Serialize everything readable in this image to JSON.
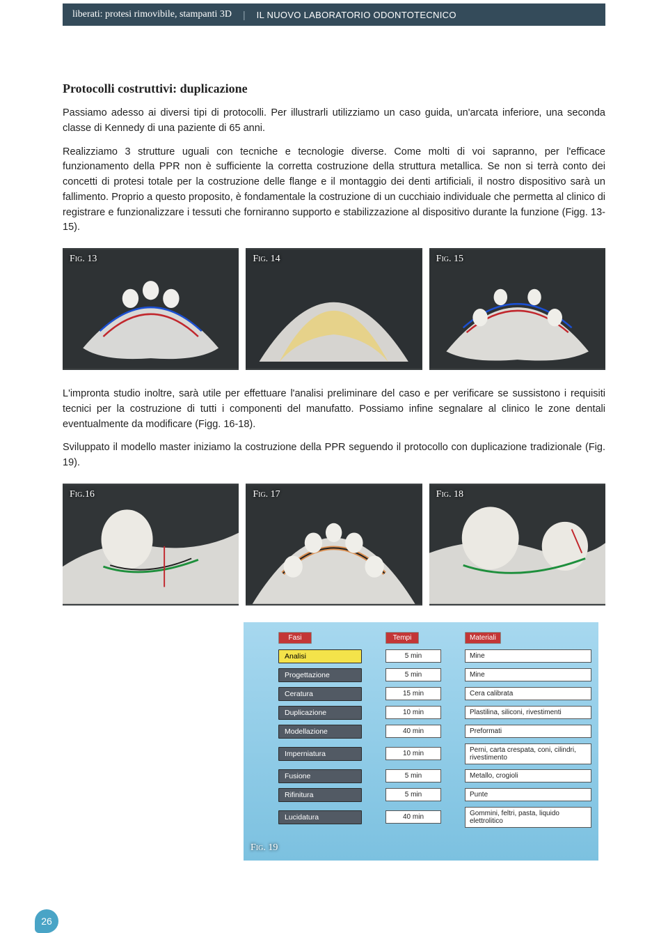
{
  "header": {
    "category": "liberati: protesi rimovibile, stampanti 3D",
    "subtitle": "IL NUOVO LABORATORIO ODONTOTECNICO"
  },
  "section_title": "Protocolli costruttivi: duplicazione",
  "para1": "Passiamo adesso ai diversi tipi di protocolli. Per illustrarli utilizziamo un caso guida, un'arcata inferiore, una seconda classe di Kennedy di una paziente di 65 anni.",
  "para2": "Realizziamo 3 strutture uguali con tecniche e tecnologie diverse. Come molti di voi sapranno, per l'efficace funzionamento della PPR non è sufficiente la corretta costruzione della struttura metallica. Se non si terrà conto dei concetti di protesi totale per la costruzione delle flange e il montaggio dei denti artificiali, il nostro dispositivo sarà un fallimento. Proprio a questo proposito, è fondamentale la costruzione di un cucchiaio individuale che permetta al clinico di registrare e funzionalizzare i tessuti che forniranno supporto e stabilizzazione al dispositivo durante la funzione (Figg. 13-15).",
  "para3": "L'impronta studio inoltre, sarà utile per effettuare l'analisi preliminare del caso e per verificare se sussistono i requisiti tecnici per la costruzione di tutti i componenti del manufatto. Possiamo infine segnalare al clinico le zone dentali eventualmente da modificare (Figg. 16-18).",
  "para4": "Sviluppato il modello master iniziamo la costruzione della PPR seguendo il protocollo con duplicazione tradizionale (Fig. 19).",
  "figs_a": [
    {
      "label": "Fig. 13"
    },
    {
      "label": "Fig. 14"
    },
    {
      "label": "Fig. 15"
    }
  ],
  "figs_b": [
    {
      "label": "Fig.16"
    },
    {
      "label": "Fig. 17"
    },
    {
      "label": "Fig. 18"
    }
  ],
  "fig19_label": "Fig. 19",
  "process_table": {
    "headers": [
      "Fasi",
      "Tempi",
      "Materiali"
    ],
    "rows": [
      {
        "phase": "Analisi",
        "time": "5 min",
        "material": "Mine",
        "active": true
      },
      {
        "phase": "Progettazione",
        "time": "5 min",
        "material": "Mine",
        "active": false
      },
      {
        "phase": "Ceratura",
        "time": "15 min",
        "material": "Cera calibrata",
        "active": false
      },
      {
        "phase": "Duplicazione",
        "time": "10 min",
        "material": "Plastilina, siliconi, rivestimenti",
        "active": false
      },
      {
        "phase": "Modellazione",
        "time": "40 min",
        "material": "Preformati",
        "active": false
      },
      {
        "phase": "Imperniatura",
        "time": "10 min",
        "material": "Perni, carta crespata, coni, cilindri, rivestimento",
        "active": false
      },
      {
        "phase": "Fusione",
        "time": "5 min",
        "material": "Metallo, crogioli",
        "active": false
      },
      {
        "phase": "Rifinitura",
        "time": "5 min",
        "material": "Punte",
        "active": false
      },
      {
        "phase": "Lucidatura",
        "time": "40 min",
        "material": "Gommini, feltri, pasta, liquido elettrolitico",
        "active": false
      }
    ]
  },
  "page_number": "26",
  "colors": {
    "header_bg": "#344b5a",
    "accent_blue": "#49a4c6",
    "table_bg_top": "#a7d8ef",
    "table_bg_bottom": "#7cc1e0",
    "header_cell": "#c33636",
    "phase_cell": "#525a64",
    "phase_active": "#f4e34a"
  }
}
